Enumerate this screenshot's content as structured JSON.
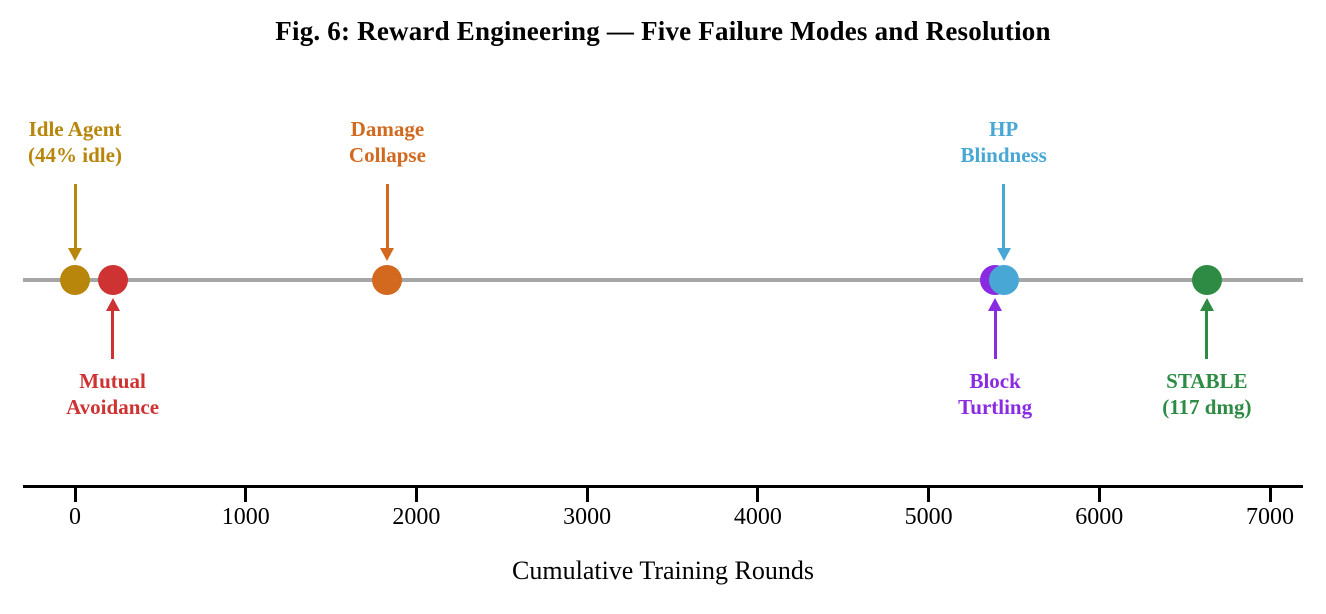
{
  "title": "Fig. 6: Reward Engineering — Five Failure Modes and Resolution",
  "chart_data": {
    "type": "scatter",
    "subtype": "timeline-event-plot",
    "title": "Fig. 6: Reward Engineering — Five Failure Modes and Resolution",
    "xlabel": "Cumulative Training Rounds",
    "ylabel": "",
    "xlim": [
      -300,
      7200
    ],
    "xticks": [
      0,
      1000,
      2000,
      3000,
      4000,
      5000,
      6000,
      7000
    ],
    "grid": false,
    "legend": "none",
    "timeline_color": "#a6a6a6",
    "axis_color": "#000000",
    "events": [
      {
        "id": "idle-agent",
        "label_line1": "Idle Agent",
        "label_line2": "(44% idle)",
        "round": 0,
        "color": "#b8860b",
        "label_side": "above"
      },
      {
        "id": "mutual-avoidance",
        "label_line1": "Mutual",
        "label_line2": "Avoidance",
        "round": 220,
        "color": "#cf3232",
        "label_side": "below"
      },
      {
        "id": "damage-collapse",
        "label_line1": "Damage",
        "label_line2": "Collapse",
        "round": 1830,
        "color": "#d2691e",
        "label_side": "above"
      },
      {
        "id": "block-turtling",
        "label_line1": "Block",
        "label_line2": "Turtling",
        "round": 5390,
        "color": "#8a2be2",
        "label_side": "below"
      },
      {
        "id": "hp-blindness",
        "label_line1": "HP",
        "label_line2": "Blindness",
        "round": 5440,
        "color": "#48a7d4",
        "label_side": "above"
      },
      {
        "id": "stable",
        "label_line1": "STABLE",
        "label_line2": "(117 dmg)",
        "round": 6630,
        "color": "#2e8b44",
        "label_side": "below"
      }
    ]
  }
}
